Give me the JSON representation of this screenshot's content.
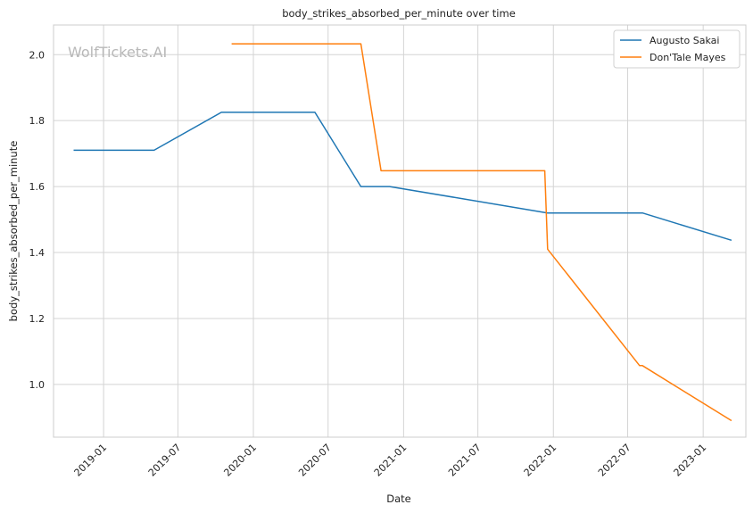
{
  "chart_data": {
    "type": "line",
    "title": "body_strikes_absorbed_per_minute over time",
    "xlabel": "Date",
    "ylabel": "body_strikes_absorbed_per_minute",
    "watermark": "WolfTickets.AI",
    "x_is_date": true,
    "xlim": [
      "2018-09-01",
      "2023-04-15"
    ],
    "ylim": [
      0.84,
      2.09
    ],
    "x_ticks": [
      "2019-01",
      "2019-07",
      "2020-01",
      "2020-07",
      "2021-01",
      "2021-07",
      "2022-01",
      "2022-07",
      "2023-01"
    ],
    "y_ticks": [
      1.0,
      1.2,
      1.4,
      1.6,
      1.8,
      2.0
    ],
    "y_tick_labels": [
      "1.0",
      "1.2",
      "1.4",
      "1.6",
      "1.8",
      "2.0"
    ],
    "grid": true,
    "legend_position": "top-right",
    "series": [
      {
        "name": "Augusto Sakai",
        "color": "#1f77b4",
        "points": [
          {
            "x": "2018-10-20",
            "y": 1.71
          },
          {
            "x": "2019-05-04",
            "y": 1.71
          },
          {
            "x": "2019-10-15",
            "y": 1.825
          },
          {
            "x": "2020-05-30",
            "y": 1.825
          },
          {
            "x": "2020-09-19",
            "y": 1.6
          },
          {
            "x": "2020-11-28",
            "y": 1.6
          },
          {
            "x": "2021-12-18",
            "y": 1.52
          },
          {
            "x": "2022-08-06",
            "y": 1.52
          },
          {
            "x": "2023-03-11",
            "y": 1.437
          }
        ]
      },
      {
        "name": "Don'Tale Mayes",
        "color": "#ff7f0e",
        "points": [
          {
            "x": "2019-11-09",
            "y": 2.033
          },
          {
            "x": "2020-09-19",
            "y": 2.033
          },
          {
            "x": "2020-11-07",
            "y": 1.648
          },
          {
            "x": "2021-12-11",
            "y": 1.648
          },
          {
            "x": "2021-12-18",
            "y": 1.41
          },
          {
            "x": "2022-07-30",
            "y": 1.057
          },
          {
            "x": "2022-08-06",
            "y": 1.057
          },
          {
            "x": "2023-03-11",
            "y": 0.89
          }
        ]
      }
    ]
  }
}
